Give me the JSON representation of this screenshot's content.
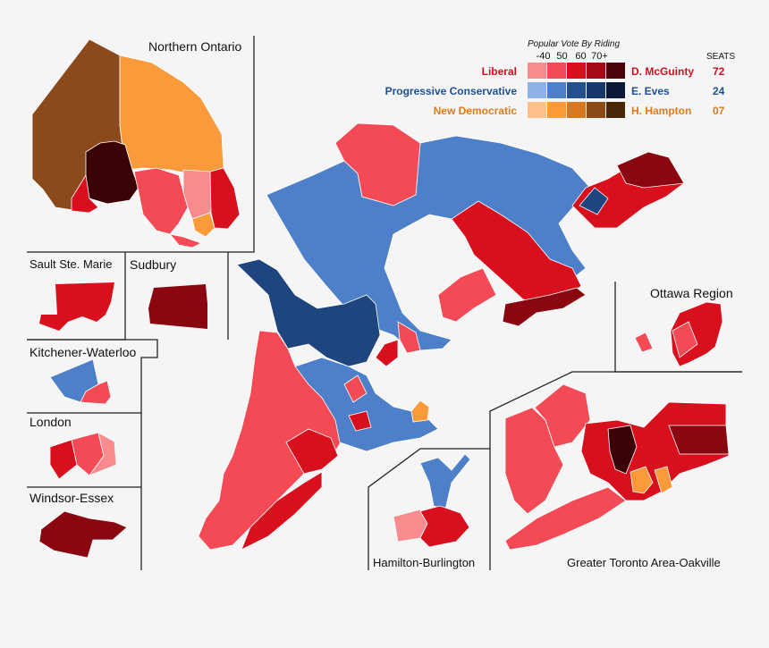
{
  "insets": {
    "northern": "Northern Ontario",
    "sault": "Sault Ste. Marie",
    "sudbury": "Sudbury",
    "kitchener": "Kitchener-Waterloo",
    "london": "London",
    "windsor": "Windsor-Essex",
    "ottawa": "Ottawa Region",
    "hamilton": "Hamilton-Burlington",
    "gta": "Greater Toronto Area-Oakville"
  },
  "legend": {
    "title": "Popular Vote By Riding",
    "ticks": [
      "-40",
      "50",
      "60",
      "70+"
    ],
    "seats_header": "SEATS",
    "parties": [
      {
        "name": "Liberal",
        "leader": "D. McGuinty",
        "seats": "72",
        "color": "#cc1020",
        "shades": [
          "#f98a8e",
          "#f44a55",
          "#d8101e",
          "#a50a14",
          "#4a0308"
        ]
      },
      {
        "name": "Progressive Conservative",
        "leader": "E. Eves",
        "seats": "24",
        "color": "#1f4f8f",
        "shades": [
          "#8fb2e6",
          "#4d80c8",
          "#24508e",
          "#17386a",
          "#0a1a36"
        ]
      },
      {
        "name": "New Democratic",
        "leader": "H. Hampton",
        "seats": "07",
        "color": "#e07a1a",
        "shades": [
          "#fdc089",
          "#fb9a3a",
          "#d9781f",
          "#8c4a14",
          "#4a2608"
        ]
      }
    ]
  },
  "colors": {
    "lib_light": "#f44a55",
    "lib_mid": "#d8101e",
    "lib_dark": "#8a0610",
    "lib_darkest": "#3a0206",
    "pc_light": "#4d80c8",
    "pc_mid": "#2a5a9a",
    "pc_dark": "#1f457f",
    "ndp_light": "#fb9a3a",
    "ndp_brown": "#8b4a1c",
    "bg": "#f5f5f5"
  }
}
